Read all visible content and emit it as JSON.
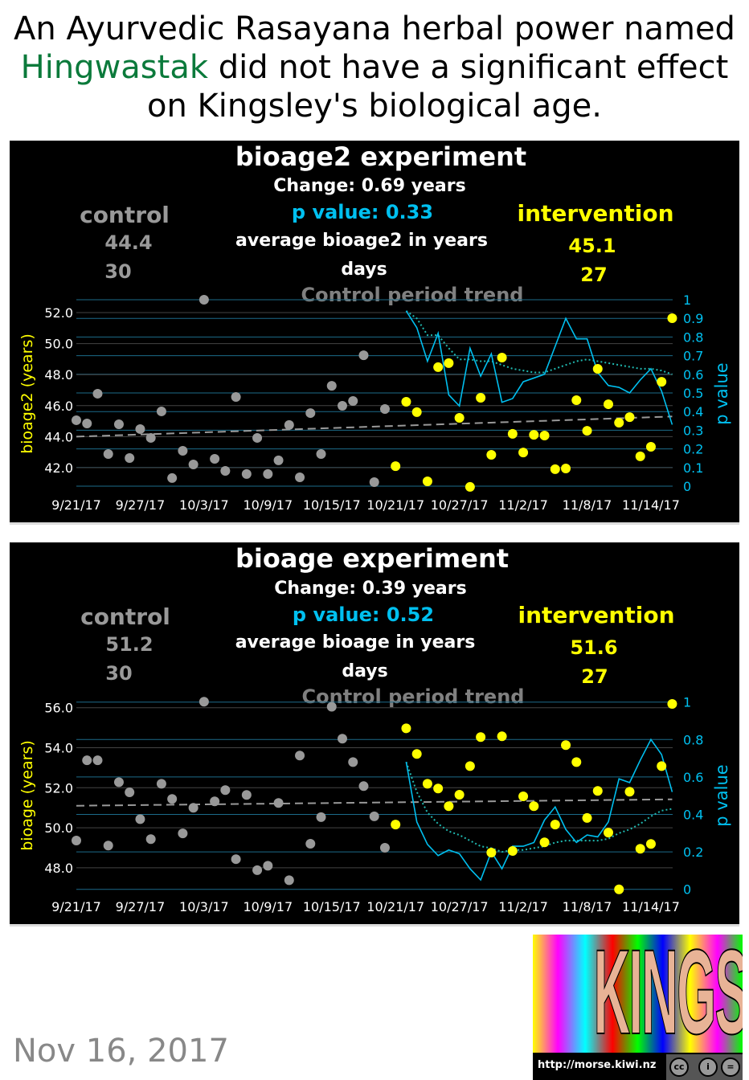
{
  "headline": {
    "line1": "An Ayurvedic Rasayana herbal power named",
    "highlight": "Hingwastak",
    "line2_rest": " did not have a significant effect",
    "line3": "on Kingsley's biological age.",
    "highlight_color": "#0b7a3b"
  },
  "footer": {
    "date": "Nov 16, 2017",
    "logo_text": "KINGSLEY",
    "logo_url": "http://morse.kiwi.nz",
    "license_icons": [
      "cc-icon",
      "by-icon",
      "nd-icon"
    ]
  },
  "colors": {
    "control": "#999999",
    "intervention": "#ffff00",
    "p_value": "#00c0f0",
    "background": "#000000"
  },
  "panels": [
    {
      "title": "bioage2 experiment",
      "change": "Change: 0.69 years",
      "p_value": "p value: 0.33",
      "control_label": "control",
      "intervention_label": "intervention",
      "control_avg": "44.4",
      "intervention_avg": "45.1",
      "avg_label": "average bioage2 in years",
      "control_days": "30",
      "intervention_days": "27",
      "days_label": "days",
      "trend_label": "Control period trend"
    },
    {
      "title": "bioage experiment",
      "change": "Change: 0.39 years",
      "p_value": "p value: 0.52",
      "control_label": "control",
      "intervention_label": "intervention",
      "control_avg": "51.2",
      "intervention_avg": "51.6",
      "avg_label": "average bioage in years",
      "control_days": "30",
      "intervention_days": "27",
      "days_label": "days",
      "trend_label": "Control period trend"
    }
  ],
  "chart_data": [
    {
      "type": "scatter",
      "ylabel": "bioage2 (years)",
      "y2label": "p value",
      "y_ticks": [
        "42.0",
        "44.0",
        "46.0",
        "48.0",
        "50.0",
        "52.0"
      ],
      "y2_ticks": [
        "0",
        "0.1",
        "0.2",
        "0.3",
        "0.4",
        "0.5",
        "0.6",
        "0.7",
        "0.8",
        "0.9",
        "1"
      ],
      "x_ticks": [
        "9/21/17",
        "9/27/17",
        "10/3/17",
        "10/9/17",
        "10/15/17",
        "10/21/17",
        "10/27/17",
        "11/2/17",
        "11/8/17",
        "11/14/17"
      ],
      "ylim": [
        40.6,
        52.8
      ],
      "y2lim": [
        0,
        1
      ],
      "grid": true,
      "control": {
        "dates": [
          "9/21/17",
          "9/22/17",
          "9/23/17",
          "9/24/17",
          "9/25/17",
          "9/26/17",
          "9/27/17",
          "9/28/17",
          "9/29/17",
          "9/30/17",
          "10/1/17",
          "10/2/17",
          "10/3/17",
          "10/4/17",
          "10/5/17",
          "10/6/17",
          "10/7/17",
          "10/8/17",
          "10/9/17",
          "10/10/17",
          "10/11/17",
          "10/12/17",
          "10/13/17",
          "10/14/17",
          "10/15/17",
          "10/16/17",
          "10/17/17",
          "10/18/17",
          "10/19/17",
          "10/20/17"
        ],
        "values": [
          45.06,
          44.85,
          46.77,
          42.88,
          44.8,
          42.62,
          44.49,
          43.92,
          45.63,
          41.33,
          43.09,
          42.21,
          52.83,
          42.57,
          41.79,
          46.56,
          41.59,
          43.92,
          41.59,
          42.47,
          44.75,
          41.38,
          45.52,
          42.88,
          47.28,
          45.99,
          46.3,
          49.25,
          41.07,
          45.78
        ]
      },
      "intervention": {
        "dates": [
          "10/21/17",
          "10/22/17",
          "10/23/17",
          "10/24/17",
          "10/25/17",
          "10/26/17",
          "10/27/17",
          "10/28/17",
          "10/29/17",
          "10/30/17",
          "10/31/17",
          "11/1/17",
          "11/2/17",
          "11/3/17",
          "11/4/17",
          "11/5/17",
          "11/6/17",
          "11/7/17",
          "11/8/17",
          "11/9/17",
          "11/10/17",
          "11/11/17",
          "11/12/17",
          "11/13/17",
          "11/14/17",
          "11/15/17",
          "11/16/17"
        ],
        "values": [
          42.1,
          46.25,
          45.58,
          41.12,
          48.48,
          48.74,
          45.21,
          40.76,
          46.51,
          42.83,
          49.1,
          44.18,
          42.98,
          44.12,
          44.07,
          41.9,
          41.95,
          46.35,
          44.38,
          48.37,
          46.09,
          44.9,
          45.26,
          42.73,
          43.35,
          47.54,
          51.64
        ]
      },
      "control_trend": {
        "start": [
          "9/21/17",
          44.0
        ],
        "end": [
          "11/16/17",
          45.3
        ]
      },
      "p_value_series": [
        0.94,
        0.85,
        0.67,
        0.82,
        0.49,
        0.43,
        0.74,
        0.59,
        0.71,
        0.45,
        0.47,
        0.56,
        0.58,
        0.6,
        0.75,
        0.9,
        0.79,
        0.79,
        0.61,
        0.54,
        0.53,
        0.5,
        0.57,
        0.63,
        0.51,
        0.33
      ],
      "p_value_dotted_series": [
        0.94,
        0.9,
        0.81,
        0.81,
        0.74,
        0.68,
        0.68,
        0.67,
        0.67,
        0.65,
        0.63,
        0.62,
        0.61,
        0.61,
        0.63,
        0.65,
        0.67,
        0.68,
        0.67,
        0.66,
        0.65,
        0.64,
        0.63,
        0.63,
        0.62,
        0.6
      ]
    },
    {
      "type": "scatter",
      "ylabel": "bioage (years)",
      "y2label": "p value",
      "y_ticks": [
        "48.0",
        "50.0",
        "52.0",
        "54.0",
        "56.0"
      ],
      "y2_ticks": [
        "0",
        "0.2",
        "0.4",
        "0.6",
        "0.8",
        "1"
      ],
      "x_ticks": [
        "9/21/17",
        "9/27/17",
        "10/3/17",
        "10/9/17",
        "10/15/17",
        "10/21/17",
        "10/27/17",
        "11/2/17",
        "11/8/17",
        "11/14/17"
      ],
      "ylim": [
        46.9,
        56.3
      ],
      "y2lim": [
        0,
        1
      ],
      "grid": true,
      "control": {
        "dates": [
          "9/21/17",
          "9/22/17",
          "9/23/17",
          "9/24/17",
          "9/25/17",
          "9/26/17",
          "9/27/17",
          "9/28/17",
          "9/29/17",
          "9/30/17",
          "10/1/17",
          "10/2/17",
          "10/3/17",
          "10/4/17",
          "10/5/17",
          "10/6/17",
          "10/7/17",
          "10/8/17",
          "10/9/17",
          "10/10/17",
          "10/11/17",
          "10/12/17",
          "10/13/17",
          "10/14/17",
          "10/15/17",
          "10/16/17",
          "10/17/17",
          "10/18/17",
          "10/19/17",
          "10/20/17"
        ],
        "values": [
          49.36,
          53.37,
          53.37,
          49.11,
          52.28,
          51.77,
          50.43,
          49.43,
          52.2,
          51.44,
          49.72,
          51.0,
          56.3,
          51.32,
          51.88,
          48.43,
          51.64,
          47.88,
          48.1,
          51.24,
          47.38,
          53.61,
          49.2,
          50.53,
          56.05,
          54.45,
          53.28,
          52.08,
          50.57,
          49.0
        ]
      },
      "intervention": {
        "dates": [
          "10/21/17",
          "10/22/17",
          "10/23/17",
          "10/24/17",
          "10/25/17",
          "10/26/17",
          "10/27/17",
          "10/28/17",
          "10/29/17",
          "10/30/17",
          "10/31/17",
          "11/1/17",
          "11/2/17",
          "11/3/17",
          "11/4/17",
          "11/5/17",
          "11/6/17",
          "11/7/17",
          "11/8/17",
          "11/9/17",
          "11/10/17",
          "11/11/17",
          "11/12/17",
          "11/13/17",
          "11/14/17",
          "11/15/17",
          "11/16/17"
        ],
        "values": [
          50.16,
          54.97,
          53.69,
          52.2,
          51.96,
          51.08,
          51.65,
          53.08,
          54.53,
          48.76,
          54.57,
          48.84,
          51.57,
          51.08,
          49.27,
          50.16,
          54.13,
          53.28,
          50.49,
          51.84,
          49.76,
          46.92,
          51.8,
          48.95,
          49.19,
          53.08,
          56.19
        ]
      },
      "control_trend": {
        "start": [
          "9/21/17",
          51.1
        ],
        "end": [
          "11/16/17",
          51.42
        ]
      },
      "p_value_series": [
        0.68,
        0.36,
        0.24,
        0.18,
        0.21,
        0.19,
        0.11,
        0.05,
        0.2,
        0.11,
        0.23,
        0.23,
        0.25,
        0.37,
        0.44,
        0.32,
        0.25,
        0.29,
        0.28,
        0.36,
        0.59,
        0.57,
        0.69,
        0.8,
        0.72,
        0.52
      ],
      "p_value_dotted_series": [
        0.68,
        0.52,
        0.41,
        0.35,
        0.31,
        0.29,
        0.26,
        0.23,
        0.22,
        0.2,
        0.21,
        0.21,
        0.22,
        0.23,
        0.25,
        0.26,
        0.26,
        0.26,
        0.26,
        0.27,
        0.3,
        0.32,
        0.35,
        0.39,
        0.42,
        0.43
      ]
    }
  ]
}
